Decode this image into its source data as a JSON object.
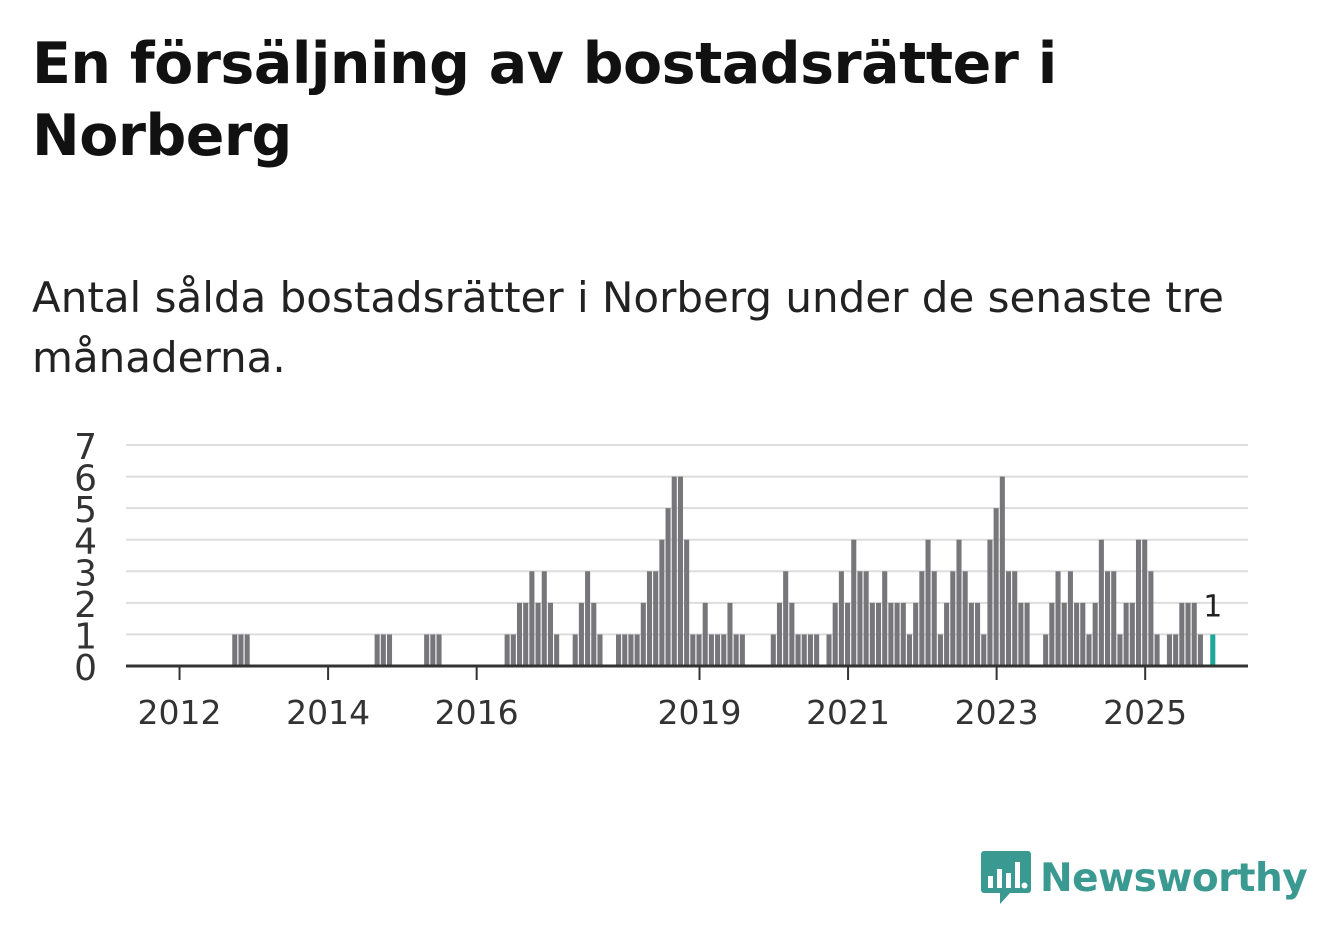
{
  "title": "En försäljning av bostadsrätter i Norberg",
  "subtitle": "Antal sålda bostadsrätter i Norberg under de senaste tre månaderna.",
  "brand": {
    "name": "Newsworthy",
    "color": "#3a9a91"
  },
  "colors": {
    "bar": "#77767b",
    "highlight": "#1fa79c",
    "grid": "#dddddd",
    "axis": "#333333"
  },
  "chart_data": {
    "type": "bar",
    "title": "En försäljning av bostadsrätter i Norberg",
    "xlabel": "",
    "ylabel": "",
    "ylim": [
      0,
      7
    ],
    "yticks": [
      0,
      1,
      2,
      3,
      4,
      5,
      6,
      7
    ],
    "xticks": [
      "2012",
      "2014",
      "2016",
      "2019",
      "2021",
      "2023",
      "2025"
    ],
    "grid": true,
    "series": [
      {
        "name": "Antal sålda bostadsrätter",
        "values": [
          0,
          0,
          0,
          0,
          0,
          0,
          0,
          0,
          0,
          0,
          0,
          0,
          0,
          0,
          0,
          0,
          0,
          1,
          1,
          1,
          0,
          0,
          0,
          0,
          0,
          0,
          0,
          0,
          0,
          0,
          0,
          0,
          0,
          0,
          0,
          0,
          0,
          0,
          0,
          0,
          1,
          1,
          1,
          0,
          0,
          0,
          0,
          0,
          1,
          1,
          1,
          0,
          0,
          0,
          0,
          0,
          0,
          0,
          0,
          0,
          0,
          1,
          1,
          2,
          2,
          3,
          2,
          3,
          2,
          1,
          0,
          0,
          1,
          2,
          3,
          2,
          1,
          0,
          0,
          1,
          1,
          1,
          1,
          2,
          3,
          3,
          4,
          5,
          6,
          6,
          4,
          1,
          1,
          2,
          1,
          1,
          1,
          2,
          1,
          1,
          0,
          0,
          0,
          0,
          1,
          2,
          3,
          2,
          1,
          1,
          1,
          1,
          0,
          1,
          2,
          3,
          2,
          4,
          3,
          3,
          2,
          2,
          3,
          2,
          2,
          2,
          1,
          2,
          3,
          4,
          3,
          1,
          2,
          3,
          4,
          3,
          2,
          2,
          1,
          4,
          5,
          6,
          3,
          3,
          2,
          2,
          0,
          0,
          1,
          2,
          3,
          2,
          3,
          2,
          2,
          1,
          2,
          4,
          3,
          3,
          1,
          2,
          2,
          4,
          4,
          3,
          1,
          0,
          1,
          1,
          2,
          2,
          2,
          1,
          0,
          1
        ]
      }
    ],
    "highlight_index": 175,
    "annotation": {
      "index": 175,
      "text": "1"
    }
  }
}
